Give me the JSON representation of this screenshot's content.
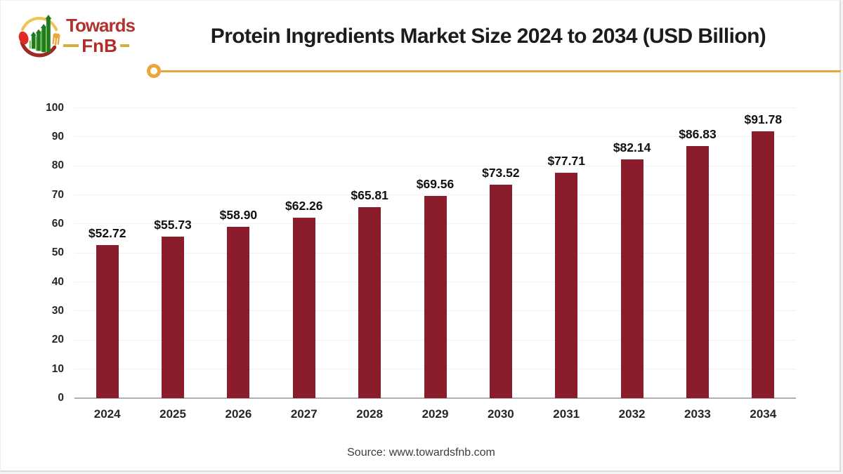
{
  "logo": {
    "brand_top": "Towards",
    "brand_bottom": "FnB"
  },
  "header": {
    "title": "Protein Ingredients Market Size 2024 to 2034 (USD Billion)"
  },
  "footer": {
    "source": "Source: www.towardsfnb.com"
  },
  "colors": {
    "bar": "#8a1c2b",
    "accent_line": "#e9a63c",
    "grid": "#f0f0f0",
    "axis": "#b0b0b0",
    "title_text": "#1c1c1c",
    "brand_red": "#b1332f",
    "logo_green": "#1e7a24",
    "logo_light_green": "#7cc24b",
    "logo_gold": "#e9b64a",
    "logo_maroon": "#9c2a22",
    "logo_spoon_red": "#dd2a22"
  },
  "chart_data": {
    "type": "bar",
    "title": "Protein Ingredients Market Size 2024 to 2034 (USD Billion)",
    "categories": [
      "2024",
      "2025",
      "2026",
      "2027",
      "2028",
      "2029",
      "2030",
      "2031",
      "2032",
      "2033",
      "2034"
    ],
    "values": [
      52.72,
      55.73,
      58.9,
      62.26,
      65.81,
      69.56,
      73.52,
      77.71,
      82.14,
      86.83,
      91.78
    ],
    "value_prefix": "$",
    "value_decimals": 2,
    "xlabel": "",
    "ylabel": "",
    "ylim": [
      0,
      100
    ],
    "ytick_step": 10,
    "grid": true,
    "legend": false,
    "source": "Source: www.towardsfnb.com"
  }
}
